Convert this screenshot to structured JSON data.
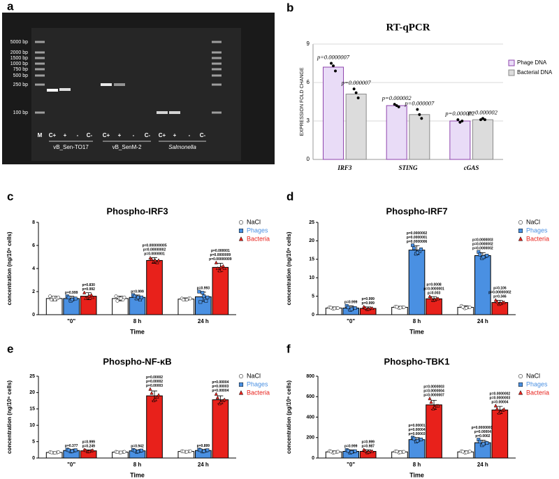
{
  "gel": {
    "panel": "a",
    "ladder_labels": [
      "5000 bp",
      "2000 bp",
      "1500 bp",
      "1000 bp",
      "750 bp",
      "500 bp",
      "250 bp",
      "100 bp"
    ],
    "lanes": [
      "M",
      "C+",
      "+",
      "-",
      "C-",
      "C+",
      "+",
      "-",
      "C-",
      "C+",
      "+",
      "-",
      "C-"
    ],
    "groups": [
      "vB_Sen-TO17",
      "vB_SenM-2",
      "Salmonella"
    ]
  },
  "chart_data": [
    {
      "type": "bar",
      "panel": "b",
      "title": "RT-qPCR",
      "ylabel": "EXPRESSION FOLD CHANGE",
      "categories": [
        "IRF3",
        "STING",
        "cGAS"
      ],
      "ylim": [
        0,
        9
      ],
      "yticks": [
        0,
        3,
        6,
        9
      ],
      "grid": true,
      "legend": "right",
      "series": [
        {
          "name": "Phage DNA",
          "color": "#e9dcf7",
          "edgecolor": "#8e44ad",
          "marker": "circle",
          "values": [
            7.2,
            4.2,
            3.0
          ],
          "points": [
            [
              7.5,
              7.3,
              6.9
            ],
            [
              4.3,
              4.2,
              4.1
            ],
            [
              3.1,
              2.9,
              3.0
            ]
          ],
          "pvalues": [
            [
              "p=0.0000007"
            ],
            [
              "p=0.000002"
            ],
            [
              "p=0.000002"
            ]
          ]
        },
        {
          "name": "Bacterial DNA",
          "color": "#dcdcdc",
          "edgecolor": "#8a8a8a",
          "marker": "circle",
          "values": [
            5.1,
            3.5,
            3.1
          ],
          "points": [
            [
              5.5,
              5.2,
              4.8
            ],
            [
              3.9,
              3.5,
              3.2
            ],
            [
              3.1,
              3.2,
              3.1
            ]
          ],
          "pvalues": [
            [
              "p=0.000007"
            ],
            [
              "p=0.000007"
            ],
            [
              "p=0.000002"
            ]
          ]
        }
      ]
    },
    {
      "type": "bar",
      "panel": "c",
      "title": "Phospho-IRF3",
      "ylabel": "concentration (ng/10⁶ cells)",
      "xlabel": "Time",
      "categories": [
        "\"0\"",
        "8 h",
        "24 h"
      ],
      "ylim": [
        0,
        8
      ],
      "yticks": [
        0,
        2,
        4,
        6,
        8
      ],
      "legend": "right",
      "series": [
        {
          "name": "NaCl",
          "color": "#ffffff",
          "edgecolor": "#000000",
          "marker": "circle",
          "values": [
            1.4,
            1.4,
            1.35
          ],
          "errors": [
            0.2,
            0.2,
            0.1
          ],
          "points": [
            [
              1.6,
              1.5,
              1.4,
              1.3,
              1.3,
              1.5
            ],
            [
              1.6,
              1.4,
              1.3,
              1.2,
              1.4,
              1.5
            ],
            [
              1.4,
              1.3,
              1.4,
              1.3,
              1.3,
              1.4
            ]
          ]
        },
        {
          "name": "Phages",
          "color": "#4a90e2",
          "edgecolor": "#000000",
          "marker": "square",
          "values": [
            1.4,
            1.5,
            1.55
          ],
          "errors": [
            0.2,
            0.2,
            0.4
          ],
          "points": [
            [
              1.6,
              1.2,
              1.4,
              1.5,
              1.3,
              1.4
            ],
            [
              1.7,
              1.4,
              1.3,
              1.6,
              1.5,
              1.5
            ],
            [
              2.0,
              1.9,
              1.2,
              1.1,
              1.6,
              1.5
            ]
          ],
          "pvalues": [
            [
              "p=0.999"
            ],
            [
              "p=0.999"
            ],
            [
              "p=0.993"
            ]
          ]
        },
        {
          "name": "Bacteria",
          "color": "#e8211b",
          "edgecolor": "#000000",
          "marker": "triangle",
          "values": [
            1.6,
            4.7,
            4.1
          ],
          "errors": [
            0.3,
            0.25,
            0.35
          ],
          "points": [
            [
              1.9,
              1.5,
              1.7,
              1.4,
              1.6,
              1.5
            ],
            [
              4.9,
              4.6,
              4.5,
              4.8,
              4.7,
              4.7
            ],
            [
              4.5,
              3.8,
              4.2,
              4.0,
              4.1,
              4.0
            ]
          ],
          "pvalues": [
            [
              "p=0.830",
              "p=0.992"
            ],
            [
              "p=0.000000005",
              "p=0.00000002",
              "p=0.0000001"
            ],
            [
              "p=0.000001",
              "p=0.0000009",
              "p=0.00000009"
            ]
          ]
        }
      ]
    },
    {
      "type": "bar",
      "panel": "d",
      "title": "Phospho-IRF7",
      "ylabel": "concentration (ng/10⁶ cells)",
      "xlabel": "Time",
      "categories": [
        "\"0\"",
        "8 h",
        "24 h"
      ],
      "ylim": [
        0,
        25
      ],
      "yticks": [
        0,
        5,
        10,
        15,
        20,
        25
      ],
      "legend": "right",
      "series": [
        {
          "name": "NaCl",
          "color": "#ffffff",
          "edgecolor": "#000000",
          "marker": "circle",
          "values": [
            1.8,
            2.0,
            2.0
          ],
          "errors": [
            0.3,
            0.3,
            0.4
          ],
          "points": [
            [
              2.0,
              1.6,
              1.8,
              1.9,
              1.7,
              1.8
            ],
            [
              2.2,
              1.8,
              2.0,
              2.1,
              1.9,
              2.0
            ],
            [
              2.4,
              1.7,
              2.0,
              2.1,
              1.8,
              2.0
            ]
          ]
        },
        {
          "name": "Phages",
          "color": "#4a90e2",
          "edgecolor": "#000000",
          "marker": "square",
          "values": [
            1.8,
            17.5,
            16.0
          ],
          "errors": [
            0.6,
            1.2,
            0.8
          ],
          "points": [
            [
              2.4,
              1.3,
              1.8,
              2.0,
              1.5,
              1.8
            ],
            [
              18.8,
              16.5,
              17.2,
              18.0,
              16.8,
              17.7
            ],
            [
              17.0,
              15.3,
              15.8,
              16.3,
              15.6,
              16.0
            ]
          ],
          "pvalues": [
            [
              "p=0.999"
            ],
            [
              "p=0.0000002",
              "p=0.0000001",
              "p=0.0000006"
            ],
            [
              "p=0.0000003",
              "p=0.0000002",
              "p=0.0000002"
            ]
          ]
        },
        {
          "name": "Bacteria",
          "color": "#e8211b",
          "edgecolor": "#000000",
          "marker": "triangle",
          "values": [
            1.7,
            4.3,
            3.3
          ],
          "errors": [
            0.4,
            0.6,
            0.6
          ],
          "points": [
            [
              2.1,
              1.4,
              1.7,
              1.8,
              1.5,
              1.7
            ],
            [
              4.9,
              3.8,
              4.3,
              4.5,
              4.0,
              4.3
            ],
            [
              3.9,
              2.8,
              3.3,
              3.5,
              3.0,
              3.3
            ]
          ],
          "pvalues": [
            [
              "p=0.999",
              "p=0.999"
            ],
            [
              "p=0.0008",
              "p=0.0000001",
              "p=0.003"
            ],
            [
              "p=0.106",
              "p=0.00000002",
              "p=0.346"
            ]
          ]
        }
      ]
    },
    {
      "type": "bar",
      "panel": "e",
      "title": "Phospho-NF-κB",
      "ylabel": "concentration (ng/10⁶ cells)",
      "xlabel": "Time",
      "categories": [
        "\"0\"",
        "8 h",
        "24 h"
      ],
      "ylim": [
        0,
        25
      ],
      "yticks": [
        0,
        5,
        10,
        15,
        20,
        25
      ],
      "legend": "right",
      "series": [
        {
          "name": "NaCl",
          "color": "#ffffff",
          "edgecolor": "#000000",
          "marker": "circle",
          "values": [
            1.7,
            1.8,
            2.0
          ],
          "errors": [
            0.2,
            0.2,
            0.2
          ],
          "points": [
            [
              1.8,
              1.6,
              1.7,
              1.7,
              1.6,
              1.8
            ],
            [
              1.9,
              1.7,
              1.8,
              1.8,
              1.7,
              1.9
            ],
            [
              2.1,
              1.9,
              2.0,
              2.0,
              1.9,
              2.1
            ]
          ]
        },
        {
          "name": "Phages",
          "color": "#4a90e2",
          "edgecolor": "#000000",
          "marker": "square",
          "values": [
            2.3,
            2.2,
            2.3
          ],
          "errors": [
            0.3,
            0.3,
            0.3
          ],
          "points": [
            [
              2.6,
              2.0,
              2.3,
              2.4,
              2.1,
              2.4
            ],
            [
              2.5,
              1.9,
              2.2,
              2.3,
              2.0,
              2.3
            ],
            [
              2.6,
              2.0,
              2.3,
              2.4,
              2.1,
              2.4
            ]
          ],
          "pvalues": [
            [
              "p=0.377"
            ],
            [
              "p=0.942"
            ],
            [
              "p=0.899"
            ]
          ]
        },
        {
          "name": "Bacteria",
          "color": "#e8211b",
          "edgecolor": "#000000",
          "marker": "triangle",
          "values": [
            2.2,
            19.0,
            17.8
          ],
          "errors": [
            0.3,
            1.5,
            1.2
          ],
          "points": [
            [
              2.5,
              1.9,
              2.2,
              2.3,
              2.0,
              2.3
            ],
            [
              21.0,
              17.5,
              18.6,
              19.8,
              17.9,
              19.2
            ],
            [
              19.5,
              16.6,
              17.5,
              18.4,
              17.0,
              17.8
            ]
          ],
          "pvalues": [
            [
              "p=0.999",
              "p=0.249"
            ],
            [
              "p=0.00002",
              "p=0.00002",
              "p=0.00003"
            ],
            [
              "p=0.00004",
              "p=0.00003",
              "p=0.00004"
            ]
          ]
        }
      ]
    },
    {
      "type": "bar",
      "panel": "f",
      "title": "Phospho-TBK1",
      "ylabel": "concentration (pg/10⁶ cells)",
      "xlabel": "Time",
      "categories": [
        "\"0\"",
        "8 h",
        "24 h"
      ],
      "ylim": [
        0,
        800
      ],
      "yticks": [
        0,
        200,
        400,
        600,
        800
      ],
      "legend": "right",
      "series": [
        {
          "name": "NaCl",
          "color": "#ffffff",
          "edgecolor": "#000000",
          "marker": "circle",
          "values": [
            60,
            60,
            60
          ],
          "errors": [
            10,
            10,
            10
          ],
          "points": [
            [
              68,
              52,
              60,
              63,
              55,
              62
            ],
            [
              66,
              53,
              60,
              64,
              56,
              61
            ],
            [
              67,
              52,
              60,
              62,
              55,
              64
            ]
          ]
        },
        {
          "name": "Phages",
          "color": "#4a90e2",
          "edgecolor": "#000000",
          "marker": "square",
          "values": [
            65,
            180,
            150
          ],
          "errors": [
            15,
            20,
            25
          ],
          "points": [
            [
              78,
              52,
              65,
              70,
              58,
              67
            ],
            [
              200,
              160,
              180,
              190,
              168,
              182
            ],
            [
              180,
              125,
              150,
              160,
              138,
              147
            ]
          ],
          "pvalues": [
            [
              "p=0.999"
            ],
            [
              "p=0.00001",
              "p=0.00004",
              "p=0.00003"
            ],
            [
              "p=0.00000008",
              "p=0.00004",
              "p=0.0002"
            ]
          ]
        },
        {
          "name": "Bacteria",
          "color": "#e8211b",
          "edgecolor": "#000000",
          "marker": "triangle",
          "values": [
            65,
            520,
            470
          ],
          "errors": [
            15,
            45,
            35
          ],
          "points": [
            [
              80,
              52,
              65,
              70,
              58,
              65
            ],
            [
              580,
              480,
              510,
              545,
              495,
              510
            ],
            [
              510,
              440,
              465,
              480,
              450,
              475
            ]
          ],
          "pvalues": [
            [
              "p=0.999",
              "p=0.987"
            ],
            [
              "p=0.0000003",
              "p=0.0000004",
              "p=0.0000007"
            ],
            [
              "p=0.0000002",
              "p=0.0000003",
              "p=0.00004"
            ]
          ]
        }
      ]
    }
  ]
}
